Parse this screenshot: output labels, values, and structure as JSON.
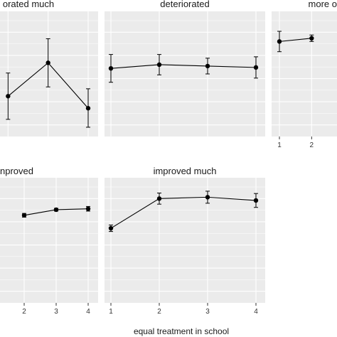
{
  "chart_data": {
    "type": "line",
    "facet_layout": "wrap",
    "error_bars": true,
    "grid": true,
    "colors": {
      "panel_bg": "#ebebeb",
      "grid": "#ffffff",
      "line": "#000000",
      "point": "#000000"
    },
    "xlabel": "equal treatment in school",
    "ylabel": "",
    "x_ticks": [
      1,
      2,
      3,
      4
    ],
    "panels": [
      {
        "title": "orated much",
        "x": [
          2,
          3,
          4
        ],
        "y": [
          2.12,
          2.84,
          1.86
        ],
        "lower": [
          1.62,
          2.32,
          1.45
        ],
        "upper": [
          2.62,
          3.36,
          2.28
        ],
        "show_x_ticks": false
      },
      {
        "title": "deteriorated",
        "x": [
          1,
          2,
          3,
          4
        ],
        "y": [
          2.72,
          2.8,
          2.77,
          2.74
        ],
        "lower": [
          2.42,
          2.58,
          2.6,
          2.51
        ],
        "upper": [
          3.02,
          3.02,
          2.94,
          2.97
        ],
        "show_x_ticks": false
      },
      {
        "title": "more o",
        "x": [
          1,
          2
        ],
        "y": [
          3.3,
          3.37
        ],
        "lower": [
          3.08,
          3.3
        ],
        "upper": [
          3.52,
          3.44
        ],
        "show_x_ticks": true
      },
      {
        "title": "nproved",
        "x": [
          2,
          3,
          4
        ],
        "y": [
          3.14,
          3.26,
          3.28
        ],
        "lower": [
          3.1,
          3.23,
          3.23
        ],
        "upper": [
          3.18,
          3.29,
          3.33
        ],
        "show_x_ticks": true
      },
      {
        "title": "improved much",
        "x": [
          1,
          2,
          3,
          4
        ],
        "y": [
          2.86,
          3.5,
          3.53,
          3.46
        ],
        "lower": [
          2.79,
          3.38,
          3.4,
          3.31
        ],
        "upper": [
          2.93,
          3.62,
          3.66,
          3.61
        ],
        "show_x_ticks": true
      }
    ]
  }
}
